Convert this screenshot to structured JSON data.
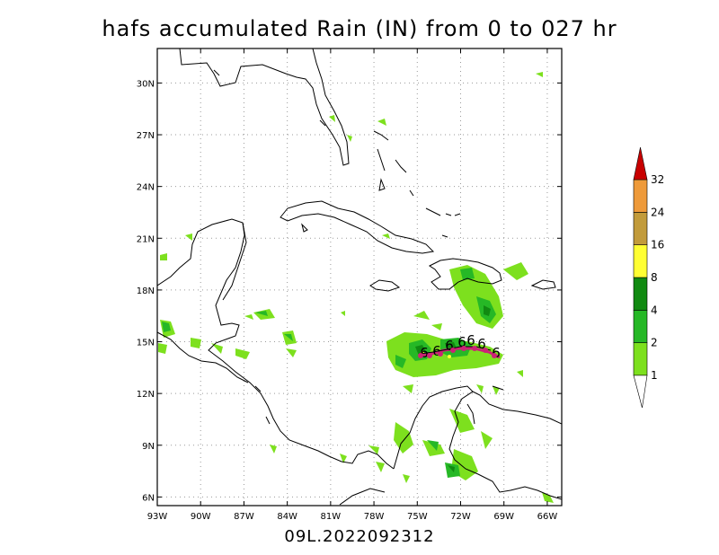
{
  "title": "hafs accumulated Rain (IN) from 0 to 027 hr",
  "subtitle": "09L.2022092312",
  "map": {
    "lon_range": [
      -93,
      -65
    ],
    "lat_range": [
      5.5,
      32
    ],
    "x_ticks": [
      {
        "lon": -93,
        "label": "93W"
      },
      {
        "lon": -90,
        "label": "90W"
      },
      {
        "lon": -87,
        "label": "87W"
      },
      {
        "lon": -84,
        "label": "84W"
      },
      {
        "lon": -81,
        "label": "81W"
      },
      {
        "lon": -78,
        "label": "78W"
      },
      {
        "lon": -75,
        "label": "75W"
      },
      {
        "lon": -72,
        "label": "72W"
      },
      {
        "lon": -69,
        "label": "69W"
      },
      {
        "lon": -66,
        "label": "66W"
      }
    ],
    "y_ticks": [
      {
        "lat": 6,
        "label": "6N"
      },
      {
        "lat": 9,
        "label": "9N"
      },
      {
        "lat": 12,
        "label": "12N"
      },
      {
        "lat": 15,
        "label": "15N"
      },
      {
        "lat": 18,
        "label": "18N"
      },
      {
        "lat": 21,
        "label": "21N"
      },
      {
        "lat": 24,
        "label": "24N"
      },
      {
        "lat": 27,
        "label": "27N"
      },
      {
        "lat": 30,
        "label": "30N"
      }
    ],
    "grid": "dotted",
    "storm_track_symbol": "6",
    "storm_track_color": "#cc2277"
  },
  "colorbar": {
    "levels": [
      "1",
      "2",
      "4",
      "8",
      "16",
      "24",
      "32"
    ],
    "colors": [
      "#7de01e",
      "#26b826",
      "#118a11",
      "#ffff33",
      "#c29b3b",
      "#ee9a3a",
      "#c80000"
    ]
  }
}
